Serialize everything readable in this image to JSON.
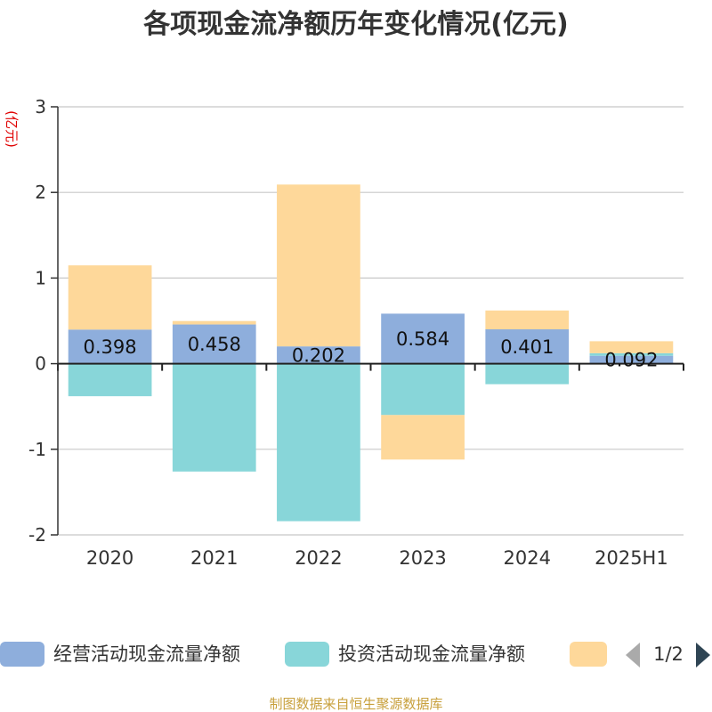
{
  "chart_data": {
    "type": "bar",
    "stacked": true,
    "title": "各项现金流净额历年变化情况(亿元)",
    "unit_label": "(亿元)",
    "categories": [
      "2020",
      "2021",
      "2022",
      "2023",
      "2024",
      "2025H1"
    ],
    "ylim": [
      -2,
      3
    ],
    "yticks": [
      -2,
      -1,
      0,
      1,
      2,
      3
    ],
    "grid": true,
    "series": [
      {
        "name": "经营活动现金流量净额",
        "color": "#8eaedc",
        "values": [
          0.398,
          0.458,
          0.202,
          0.584,
          0.401,
          0.092
        ],
        "show_labels": true
      },
      {
        "name": "投资活动现金流量净额",
        "color": "#88d6d9",
        "values": [
          -0.38,
          -1.26,
          -1.84,
          -0.6,
          -0.24,
          0.03
        ],
        "show_labels": false
      },
      {
        "name": "",
        "color": "#fed89a",
        "values": [
          0.75,
          0.04,
          1.89,
          -0.52,
          0.22,
          0.14
        ],
        "show_labels": false
      }
    ]
  },
  "legend": {
    "placement": "bottom",
    "pager_text": "1/2"
  },
  "footer": {
    "source": "制图数据来自恒生聚源数据库"
  }
}
